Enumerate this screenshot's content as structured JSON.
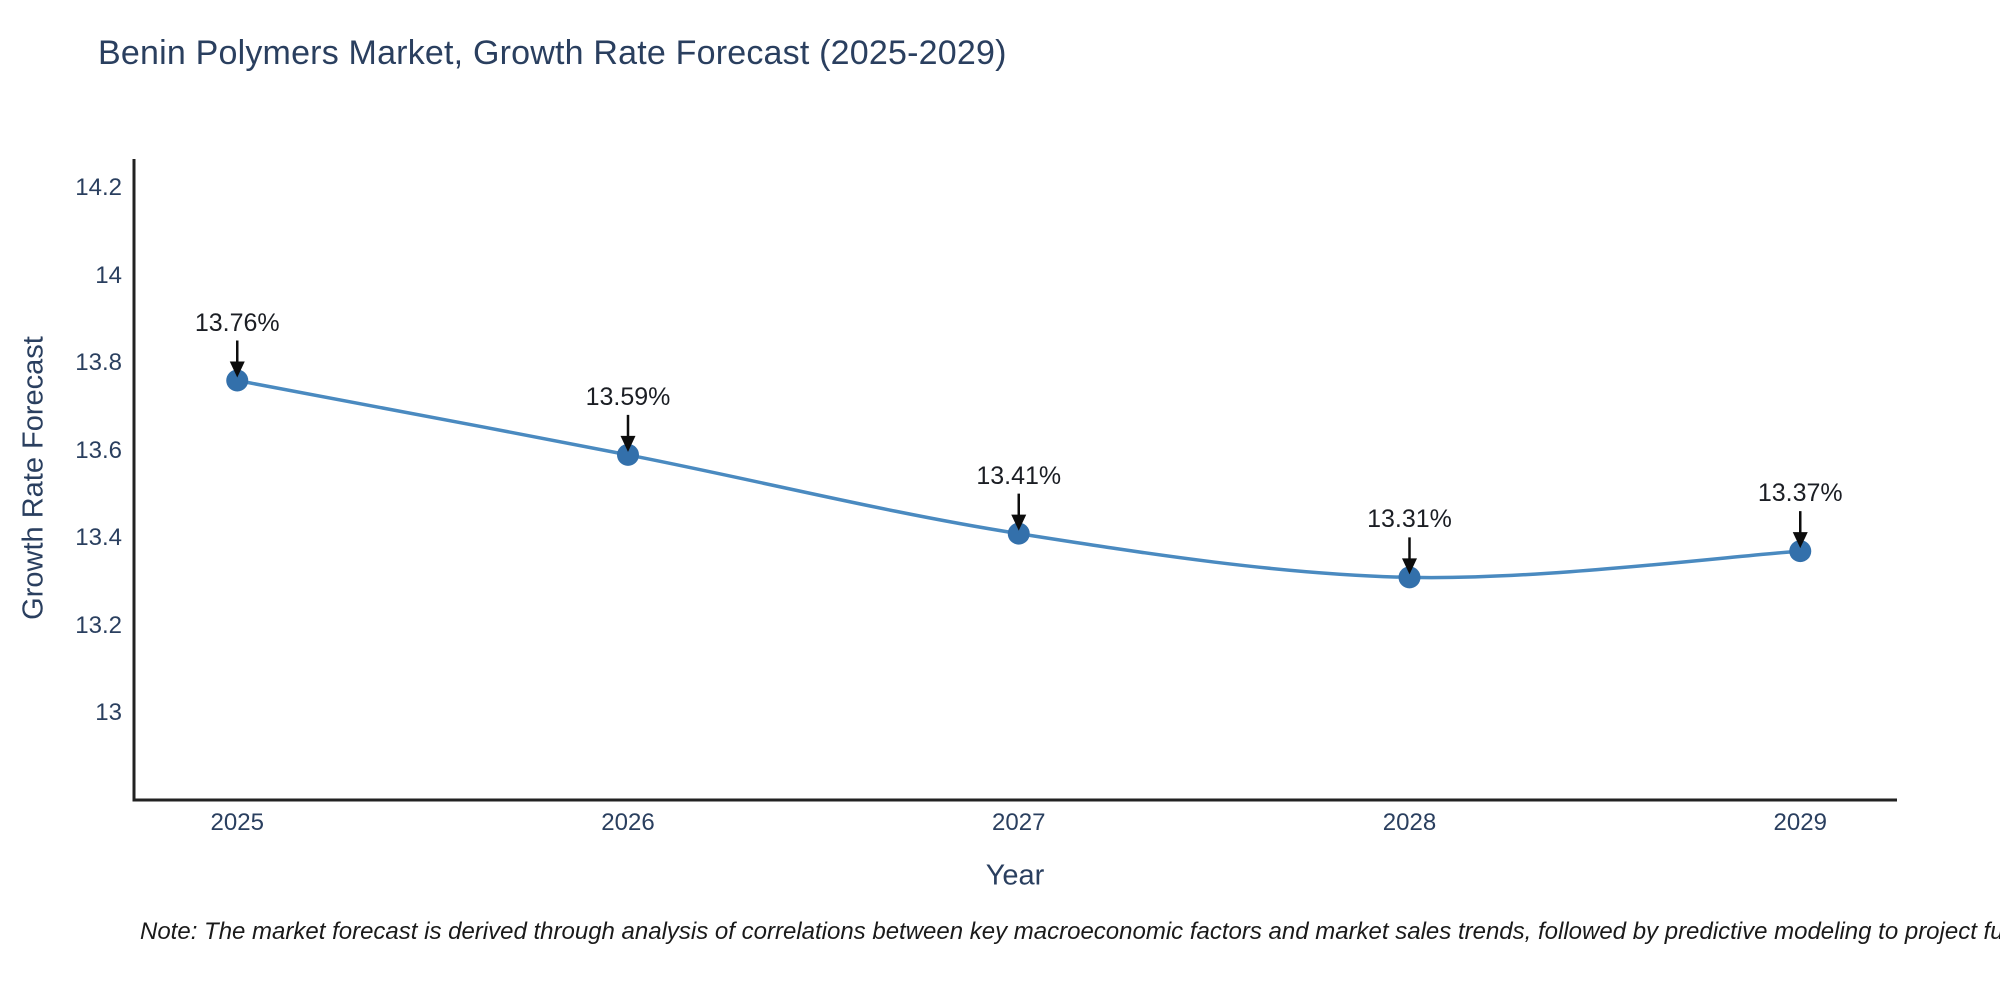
{
  "page": {
    "background": "#ffffff"
  },
  "header": {
    "title": "Benin Polymers Market, Growth Rate Forecast (2025-2029)"
  },
  "chart_data": {
    "type": "line",
    "title": "Benin Polymers Market, Growth Rate Forecast (2025-2029)",
    "xlabel": "Year",
    "ylabel": "Growth Rate Forecast",
    "categories": [
      "2025",
      "2026",
      "2027",
      "2028",
      "2029"
    ],
    "series": [
      {
        "name": "Growth Rate Forecast",
        "values": [
          13.76,
          13.59,
          13.41,
          13.31,
          13.37
        ]
      }
    ],
    "point_labels": [
      "13.76%",
      "13.59%",
      "13.41%",
      "13.31%",
      "13.37%"
    ],
    "ytick_labels": [
      "14.2",
      "14",
      "13.8",
      "13.6",
      "13.4",
      "13.2",
      "13"
    ],
    "ytick_values": [
      14.2,
      14.0,
      13.8,
      13.6,
      13.4,
      13.2,
      13.0
    ],
    "ylim": [
      12.8,
      14.29
    ],
    "grid": false,
    "legend": "none",
    "annotation_style": "down-arrow-to-point",
    "colors": {
      "line": "#4a8ac0",
      "marker": "#3370ab",
      "axis": "#222222",
      "arrow": "#0d0d0d",
      "text": "#2a3f5f",
      "annotation_text": "#1b1e24"
    }
  },
  "note": {
    "text": "Note: The market forecast is derived through analysis of correlations between key macroeconomic factors and market sales trends, followed by predictive modeling to project future sal"
  }
}
